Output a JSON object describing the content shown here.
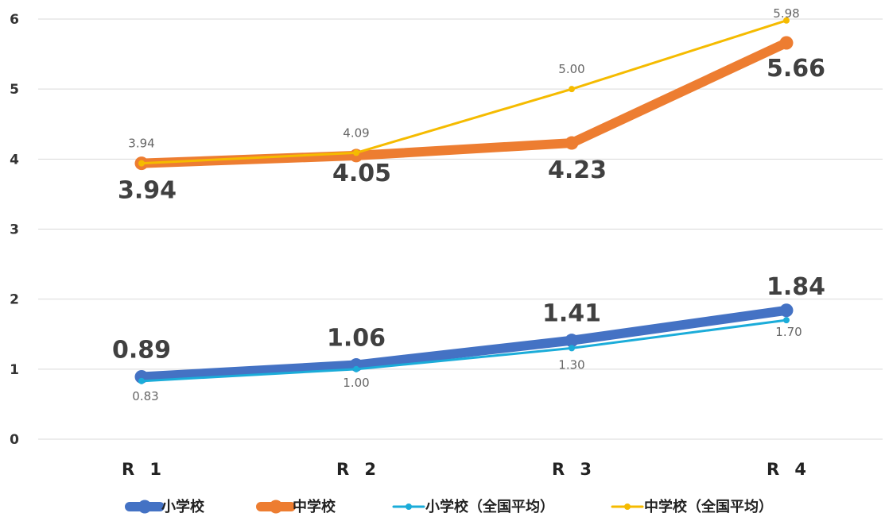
{
  "chart_data": {
    "type": "line",
    "title": "",
    "xlabel": "",
    "ylabel": "",
    "categories": [
      "R 1",
      "R 2",
      "R 3",
      "R 4"
    ],
    "ylim": [
      0,
      6
    ],
    "yticks": [
      "0",
      "1",
      "2",
      "3",
      "4",
      "5",
      "6"
    ],
    "grid": true,
    "legend_position": "bottom",
    "series": [
      {
        "name": "小学校",
        "values": [
          0.89,
          1.06,
          1.41,
          1.84
        ],
        "labels": [
          "0.89",
          "1.06",
          "1.41",
          "1.84"
        ],
        "color": "#4472C4",
        "style": "thick"
      },
      {
        "name": "中学校",
        "values": [
          3.94,
          4.05,
          4.23,
          5.66
        ],
        "labels": [
          "3.94",
          "4.05",
          "4.23",
          "5.66"
        ],
        "color": "#ED7D31",
        "style": "thick"
      },
      {
        "name": "小学校（全国平均）",
        "values": [
          0.83,
          1.0,
          1.3,
          1.7
        ],
        "labels": [
          "0.83",
          "1.00",
          "1.30",
          "1.70"
        ],
        "color": "#1BACD9",
        "style": "thin"
      },
      {
        "name": "中学校（全国平均）",
        "values": [
          3.94,
          4.09,
          5.0,
          5.98
        ],
        "labels": [
          "3.94",
          "4.09",
          "5.00",
          "5.98"
        ],
        "color": "#F5BB00",
        "style": "thin"
      }
    ]
  }
}
